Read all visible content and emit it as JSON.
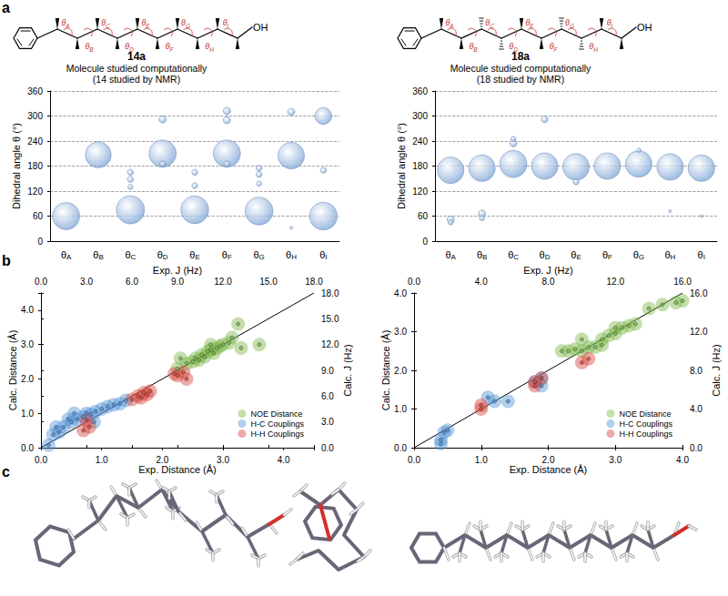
{
  "figure": {
    "panel_labels": [
      "a",
      "b",
      "c"
    ]
  },
  "molecules": [
    {
      "name": "14a",
      "caption": "Molecule studied computationally",
      "note": "(14 studied by NMR)",
      "end_group": "OH"
    },
    {
      "name": "18a",
      "caption": "Molecule studied computationally",
      "note": "(18 studied by NMR)",
      "end_group": "OH"
    }
  ],
  "chart_data": [
    {
      "type": "bubble",
      "marker": "circle",
      "color": "#7fa6d6",
      "grid": true,
      "ylabel": "Dihedral angle θ (°)",
      "categories": [
        "θA",
        "θB",
        "θC",
        "θD",
        "θE",
        "θF",
        "θG",
        "θH",
        "θI"
      ],
      "ylim": [
        0,
        360
      ],
      "yticks": [
        0,
        60,
        120,
        180,
        240,
        300,
        360
      ],
      "points": [
        {
          "x": "θA",
          "y": 60,
          "size": 42
        },
        {
          "x": "θB",
          "y": 207,
          "size": 38
        },
        {
          "x": "θC",
          "y": 75,
          "size": 45
        },
        {
          "x": "θC",
          "y": 165,
          "size": 2
        },
        {
          "x": "θC",
          "y": 148,
          "size": 2
        },
        {
          "x": "θC",
          "y": 130,
          "size": 1.5
        },
        {
          "x": "θD",
          "y": 210,
          "size": 42
        },
        {
          "x": "θD",
          "y": 292,
          "size": 3
        },
        {
          "x": "θD",
          "y": 185,
          "size": 2
        },
        {
          "x": "θE",
          "y": 75,
          "size": 44
        },
        {
          "x": "θE",
          "y": 165,
          "size": 2
        },
        {
          "x": "θE",
          "y": 133,
          "size": 2
        },
        {
          "x": "θF",
          "y": 210,
          "size": 42
        },
        {
          "x": "θF",
          "y": 312,
          "size": 3
        },
        {
          "x": "θF",
          "y": 290,
          "size": 3
        },
        {
          "x": "θF",
          "y": 185,
          "size": 2
        },
        {
          "x": "θG",
          "y": 72,
          "size": 44
        },
        {
          "x": "θG",
          "y": 175,
          "size": 2
        },
        {
          "x": "θG",
          "y": 160,
          "size": 2
        },
        {
          "x": "θG",
          "y": 138,
          "size": 1.5
        },
        {
          "x": "θH",
          "y": 205,
          "size": 40
        },
        {
          "x": "θH",
          "y": 310,
          "size": 3
        },
        {
          "x": "θH",
          "y": 32,
          "size": 0.5
        },
        {
          "x": "θI",
          "y": 60,
          "size": 44
        },
        {
          "x": "θI",
          "y": 300,
          "size": 16
        },
        {
          "x": "θI",
          "y": 170,
          "size": 2
        }
      ]
    },
    {
      "type": "bubble",
      "marker": "circle",
      "color": "#7fa6d6",
      "grid": true,
      "ylabel": "Dihedral angle θ (°)",
      "categories": [
        "θA",
        "θB",
        "θC",
        "θD",
        "θE",
        "θF",
        "θG",
        "θH",
        "θI"
      ],
      "ylim": [
        0,
        360
      ],
      "yticks": [
        0,
        60,
        120,
        180,
        240,
        300,
        360
      ],
      "points": [
        {
          "x": "θA",
          "y": 170,
          "size": 40
        },
        {
          "x": "θA",
          "y": 52,
          "size": 3
        },
        {
          "x": "θA",
          "y": 45,
          "size": 1.5
        },
        {
          "x": "θB",
          "y": 175,
          "size": 40
        },
        {
          "x": "θB",
          "y": 66,
          "size": 3
        },
        {
          "x": "θB",
          "y": 55,
          "size": 1.5
        },
        {
          "x": "θC",
          "y": 185,
          "size": 42
        },
        {
          "x": "θC",
          "y": 235,
          "size": 3
        },
        {
          "x": "θC",
          "y": 245,
          "size": 1.5
        },
        {
          "x": "θD",
          "y": 180,
          "size": 40
        },
        {
          "x": "θD",
          "y": 292,
          "size": 2.5
        },
        {
          "x": "θE",
          "y": 178,
          "size": 40
        },
        {
          "x": "θE",
          "y": 142,
          "size": 2
        },
        {
          "x": "θF",
          "y": 180,
          "size": 40
        },
        {
          "x": "θG",
          "y": 185,
          "size": 40
        },
        {
          "x": "θG",
          "y": 218,
          "size": 1
        },
        {
          "x": "θH",
          "y": 178,
          "size": 40
        },
        {
          "x": "θH",
          "y": 72,
          "size": 0.5
        },
        {
          "x": "θI",
          "y": 175,
          "size": 40
        },
        {
          "x": "θI",
          "y": 60,
          "size": 0.5
        }
      ]
    },
    {
      "type": "scatter",
      "grid": false,
      "legend": "bottom-right",
      "xlabel": "Exp. Distance (Å)",
      "ylabel": "Calc. Distance (Å)",
      "x2label": "Exp. J (Hz)",
      "y2label": "Calc. J (Hz)",
      "xlim": [
        0,
        4.5
      ],
      "xticks": [
        {
          "value": 0,
          "label": "0.0"
        },
        {
          "value": 1,
          "label": "1.0"
        },
        {
          "value": 2,
          "label": "2.0"
        },
        {
          "value": 3,
          "label": "3.0"
        },
        {
          "value": 4,
          "label": "4.0"
        }
      ],
      "ylim": [
        0,
        4.5
      ],
      "yticks": [
        {
          "value": 0,
          "label": "0.0"
        },
        {
          "value": 1,
          "label": "1.0"
        },
        {
          "value": 2,
          "label": "2.0"
        },
        {
          "value": 3,
          "label": "3.0"
        },
        {
          "value": 4,
          "label": "4.0"
        }
      ],
      "x2lim": [
        0,
        18
      ],
      "x2ticks": [
        {
          "value": 0,
          "label": "0.0"
        },
        {
          "value": 3,
          "label": "3.0"
        },
        {
          "value": 6,
          "label": "6.0"
        },
        {
          "value": 9,
          "label": "9.0"
        },
        {
          "value": 12,
          "label": "12.0"
        },
        {
          "value": 15,
          "label": "15.0"
        },
        {
          "value": 18,
          "label": "18.0"
        }
      ],
      "y2lim": [
        0,
        18
      ],
      "y2ticks": [
        {
          "value": 0,
          "label": "0.0"
        },
        {
          "value": 3,
          "label": "3.0"
        },
        {
          "value": 6,
          "label": "6.0"
        },
        {
          "value": 9,
          "label": "9.0"
        },
        {
          "value": 12,
          "label": "12.0"
        },
        {
          "value": 15,
          "label": "15.0"
        },
        {
          "value": 18,
          "label": "18.0"
        }
      ],
      "identity_line": [
        [
          0,
          0
        ],
        [
          4.5,
          4.5
        ]
      ],
      "series": [
        {
          "name": "NOE Distance",
          "color": "#7cb94a",
          "marker": "circle",
          "values": [
            [
              2.25,
              2.3
            ],
            [
              2.3,
              2.6
            ],
            [
              2.4,
              2.45
            ],
            [
              2.5,
              2.5
            ],
            [
              2.55,
              2.6
            ],
            [
              2.6,
              2.55
            ],
            [
              2.65,
              2.7
            ],
            [
              2.7,
              2.65
            ],
            [
              2.75,
              2.8
            ],
            [
              2.8,
              2.85
            ],
            [
              2.85,
              2.75
            ],
            [
              2.9,
              2.9
            ],
            [
              2.95,
              2.95
            ],
            [
              3.0,
              3.0
            ],
            [
              3.1,
              3.05
            ],
            [
              3.15,
              3.2
            ],
            [
              3.25,
              3.6
            ],
            [
              3.3,
              2.9
            ],
            [
              3.6,
              3.0
            ],
            [
              2.8,
              3.0
            ]
          ]
        },
        {
          "name": "H-C Couplings",
          "color": "#4f93d8",
          "marker": "circle",
          "axis": "y2",
          "values": [
            [
              0.5,
              0.3
            ],
            [
              0.8,
              1.5
            ],
            [
              1.0,
              2.4
            ],
            [
              1.2,
              1.8
            ],
            [
              1.5,
              2.4
            ],
            [
              1.8,
              3.3
            ],
            [
              2.0,
              3.0
            ],
            [
              2.2,
              4.0
            ],
            [
              2.4,
              3.3
            ],
            [
              2.8,
              3.6
            ],
            [
              3.0,
              4.0
            ],
            [
              3.3,
              3.9
            ],
            [
              3.5,
              3.0
            ],
            [
              3.6,
              4.2
            ],
            [
              4.0,
              4.5
            ],
            [
              4.4,
              4.8
            ],
            [
              4.8,
              5.0
            ],
            [
              5.2,
              5.1
            ],
            [
              5.6,
              5.5
            ]
          ]
        },
        {
          "name": "H-H Couplings",
          "color": "#d9473d",
          "marker": "circle",
          "axis": "y2",
          "values": [
            [
              2.8,
              2.0
            ],
            [
              3.2,
              2.4
            ],
            [
              3.0,
              3.2
            ],
            [
              6.0,
              5.6
            ],
            [
              6.4,
              6.0
            ],
            [
              6.6,
              5.8
            ],
            [
              6.8,
              6.4
            ],
            [
              7.0,
              6.2
            ],
            [
              7.2,
              6.6
            ],
            [
              8.8,
              8.6
            ],
            [
              9.0,
              8.4
            ],
            [
              9.4,
              8.8
            ],
            [
              9.6,
              8.0
            ]
          ]
        }
      ]
    },
    {
      "type": "scatter",
      "grid": false,
      "legend": "bottom-right",
      "xlabel": "Exp. Distance (Å)",
      "ylabel": "Calc. Distance (Å)",
      "x2label": "Exp. J (Hz)",
      "y2label": "Calc. J (Hz)",
      "xlim": [
        0,
        4
      ],
      "xticks": [
        {
          "value": 0,
          "label": "0.0"
        },
        {
          "value": 1,
          "label": "1.0"
        },
        {
          "value": 2,
          "label": "2.0"
        },
        {
          "value": 3,
          "label": "3.0"
        },
        {
          "value": 4,
          "label": "4.0"
        }
      ],
      "ylim": [
        0,
        4
      ],
      "yticks": [
        {
          "value": 0,
          "label": "0.0"
        },
        {
          "value": 1,
          "label": "1.0"
        },
        {
          "value": 2,
          "label": "2.0"
        },
        {
          "value": 3,
          "label": "3.0"
        },
        {
          "value": 4,
          "label": "4.0"
        }
      ],
      "x2lim": [
        0,
        16
      ],
      "x2ticks": [
        {
          "value": 0,
          "label": "0.0"
        },
        {
          "value": 4,
          "label": "4.0"
        },
        {
          "value": 8,
          "label": "8.0"
        },
        {
          "value": 12,
          "label": "12.0"
        },
        {
          "value": 16,
          "label": "16.0"
        }
      ],
      "y2lim": [
        0,
        16
      ],
      "y2ticks": [
        {
          "value": 0,
          "label": "0.0"
        },
        {
          "value": 4,
          "label": "4.0"
        },
        {
          "value": 8,
          "label": "8.0"
        },
        {
          "value": 12,
          "label": "12.0"
        },
        {
          "value": 16,
          "label": "16.0"
        }
      ],
      "identity_line": [
        [
          0,
          0
        ],
        [
          4,
          4
        ]
      ],
      "series": [
        {
          "name": "NOE Distance",
          "color": "#7cb94a",
          "marker": "circle",
          "values": [
            [
              2.2,
              2.5
            ],
            [
              2.3,
              2.5
            ],
            [
              2.4,
              2.55
            ],
            [
              2.5,
              2.5
            ],
            [
              2.5,
              2.8
            ],
            [
              2.6,
              2.6
            ],
            [
              2.7,
              2.6
            ],
            [
              2.8,
              2.65
            ],
            [
              2.8,
              2.8
            ],
            [
              2.9,
              2.9
            ],
            [
              3.0,
              2.95
            ],
            [
              3.0,
              3.1
            ],
            [
              3.1,
              3.1
            ],
            [
              3.2,
              3.15
            ],
            [
              3.3,
              3.2
            ],
            [
              3.5,
              3.6
            ],
            [
              3.7,
              3.7
            ],
            [
              3.9,
              3.75
            ],
            [
              4.0,
              3.8
            ]
          ]
        },
        {
          "name": "H-C Couplings",
          "color": "#4f93d8",
          "marker": "circle",
          "axis": "y2",
          "values": [
            [
              1.6,
              0.4
            ],
            [
              1.6,
              0.8
            ],
            [
              1.8,
              1.6
            ],
            [
              2.0,
              1.8
            ],
            [
              4.4,
              5.2
            ],
            [
              4.8,
              4.8
            ],
            [
              5.6,
              4.8
            ],
            [
              7.2,
              6.8
            ],
            [
              7.6,
              7.2
            ],
            [
              7.6,
              6.4
            ]
          ]
        },
        {
          "name": "H-H Couplings",
          "color": "#d9473d",
          "marker": "circle",
          "axis": "y2",
          "values": [
            [
              4.0,
              4.4
            ],
            [
              4.0,
              4.0
            ],
            [
              7.2,
              6.8
            ],
            [
              7.6,
              7.2
            ],
            [
              7.2,
              6.4
            ],
            [
              10.0,
              8.8
            ],
            [
              10.4,
              9.2
            ]
          ]
        }
      ]
    }
  ]
}
